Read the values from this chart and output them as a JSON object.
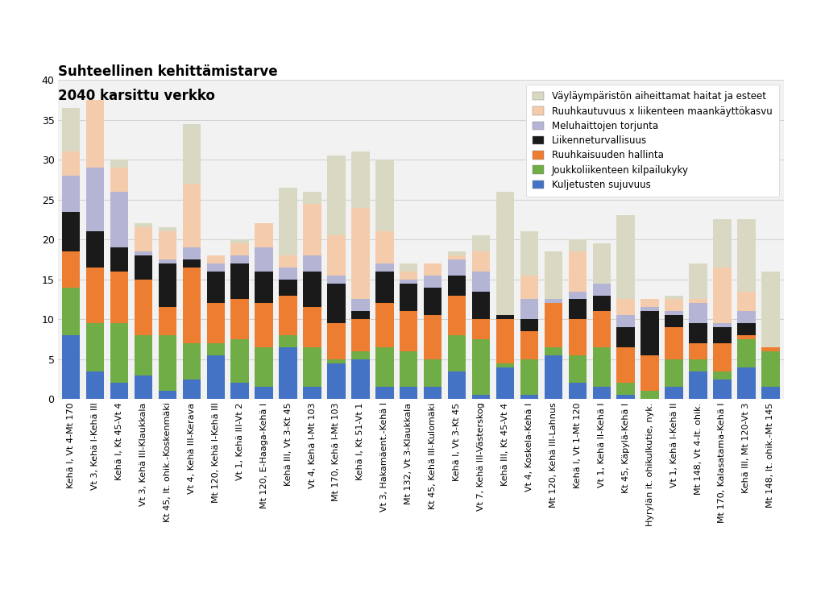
{
  "title_line1": "Suhteellinen kehittämistarve",
  "title_line2": "2040 karsittu verkko",
  "ylim": [
    0,
    40
  ],
  "yticks": [
    0,
    5,
    10,
    15,
    20,
    25,
    30,
    35,
    40
  ],
  "categories": [
    "Kehä I, Vt 4-Mt 170",
    "Vt 3, Kehä I-Kehä III",
    "Kehä I, Kt 45-Vt 4",
    "Vt 3, Kehä III-Klaukkala",
    "Kt 45, It. ohik.-Koskenmäki",
    "Vt 4, Kehä III-Kerava",
    "Mt 120, Kehä I-Kehä III",
    "Vt 1, Kehä III-Vt 2",
    "Mt 120, E-Haaga-Kehä I",
    "Kehä III, Vt 3-Kt 45",
    "Vt 4, Kehä I-Mt 103",
    "Mt 170, Kehä I-Mt 103",
    "Kehä I, Kt 51-Vt 1",
    "Vt 3, Hakamäent.-Kehä I",
    "Mt 132, Vt 3-Klaukkala",
    "Kt 45, Kehä III-Kulomäki",
    "Kehä I, Vt 3-Kt 45",
    "Vt 7, Kehä III-Västerskog",
    "Kehä III, Kt 45-Vt 4",
    "Vt 4, Koskela-Kehä I",
    "Mt 120, Kehä III-Lahnus",
    "Kehä I, Vt 1-Mt 120",
    "Vt 1, Kehä II-Kehä I",
    "Kt 45, Käpylä-Kehä I",
    "Hyrylän it. ohikulkutie, nyk.",
    "Vt 1, Kehä I-Kehä II",
    "Mt 148, Vt 4-It. ohik.",
    "Mt 170, Kalasatama-Kehä I",
    "Kehä III, Mt 120-Vt 3",
    "Mt 148, It. ohik.-Mt 145"
  ],
  "colors": {
    "kuljetusten_sujuvuus": "#4472C4",
    "joukkoliikenteen_kilpailukyky": "#70AD47",
    "ruuhkaisuuden_hallinta": "#ED7D31",
    "liikenneturvallisuus": "#1A1A1A",
    "meluhaittojen_torjunta": "#B4B4D4",
    "ruuhkautuvuus_maankaytto": "#F4CCAB",
    "vaylaymparisto": "#D9D9C3"
  },
  "legend_labels": [
    "Väyläympäristön aiheittamat haitat ja esteet",
    "Ruuhkautuvuus x liikenteen maankäyttökasvu",
    "Meluhaittojen torjunta",
    "Liikenneturvallisuus",
    "Ruuhkaisuuden hallinta",
    "Joukkoliikenteen kilpailukyky",
    "Kuljetusten sujuvuus"
  ],
  "data": {
    "kuljetusten_sujuvuus": [
      8.0,
      3.5,
      2.0,
      3.0,
      1.0,
      2.5,
      5.5,
      2.0,
      1.5,
      6.5,
      1.5,
      4.5,
      5.0,
      1.5,
      1.5,
      1.5,
      3.5,
      0.5,
      4.0,
      0.5,
      5.5,
      2.0,
      1.5,
      0.5,
      0.0,
      1.5,
      3.5,
      2.5,
      4.0,
      1.5
    ],
    "joukkoliikenteen_kilpailukyky": [
      6.0,
      6.0,
      7.5,
      5.0,
      7.0,
      4.5,
      1.5,
      5.5,
      5.0,
      1.5,
      5.0,
      0.5,
      1.0,
      5.0,
      4.5,
      3.5,
      4.5,
      7.0,
      0.5,
      4.5,
      1.0,
      3.5,
      5.0,
      1.5,
      1.0,
      3.5,
      1.5,
      1.0,
      3.5,
      4.5
    ],
    "ruuhkaisuuden_hallinta": [
      4.5,
      7.0,
      6.5,
      7.0,
      3.5,
      9.5,
      5.0,
      5.0,
      5.5,
      5.0,
      5.0,
      4.5,
      4.0,
      5.5,
      5.0,
      5.5,
      5.0,
      2.5,
      5.5,
      3.5,
      5.5,
      4.5,
      4.5,
      4.5,
      4.5,
      4.0,
      2.0,
      3.5,
      0.5,
      0.5
    ],
    "liikenneturvallisuus": [
      5.0,
      4.5,
      3.0,
      3.0,
      5.5,
      1.0,
      4.0,
      4.5,
      4.0,
      2.0,
      4.5,
      5.0,
      1.0,
      4.0,
      3.5,
      3.5,
      2.5,
      3.5,
      0.5,
      1.5,
      0.0,
      2.5,
      2.0,
      2.5,
      5.5,
      1.5,
      2.5,
      2.0,
      1.5,
      0.0
    ],
    "meluhaittojen_torjunta": [
      4.5,
      8.0,
      7.0,
      0.5,
      0.5,
      1.5,
      1.0,
      1.0,
      3.0,
      1.5,
      2.0,
      1.0,
      1.5,
      1.0,
      0.5,
      1.5,
      2.0,
      2.5,
      0.0,
      2.5,
      0.5,
      1.0,
      1.5,
      1.5,
      0.5,
      0.5,
      2.5,
      0.5,
      1.5,
      0.0
    ],
    "ruuhkautuvuus_maankaytto": [
      3.0,
      8.5,
      3.0,
      3.0,
      3.5,
      8.0,
      1.0,
      1.5,
      3.0,
      1.5,
      6.5,
      5.0,
      11.5,
      4.0,
      1.0,
      1.5,
      0.5,
      2.5,
      0.0,
      3.0,
      0.0,
      5.0,
      0.0,
      2.0,
      1.0,
      1.5,
      0.5,
      7.0,
      2.5,
      0.0
    ],
    "vaylaymparisto": [
      5.5,
      0.0,
      1.0,
      0.5,
      0.5,
      7.5,
      0.0,
      0.5,
      0.0,
      8.5,
      1.5,
      10.0,
      7.0,
      9.0,
      1.0,
      0.0,
      0.5,
      2.0,
      15.5,
      5.5,
      6.0,
      1.5,
      5.0,
      10.5,
      0.0,
      0.5,
      4.5,
      6.0,
      9.0,
      9.5
    ]
  },
  "background_color": "#F2F2F2"
}
